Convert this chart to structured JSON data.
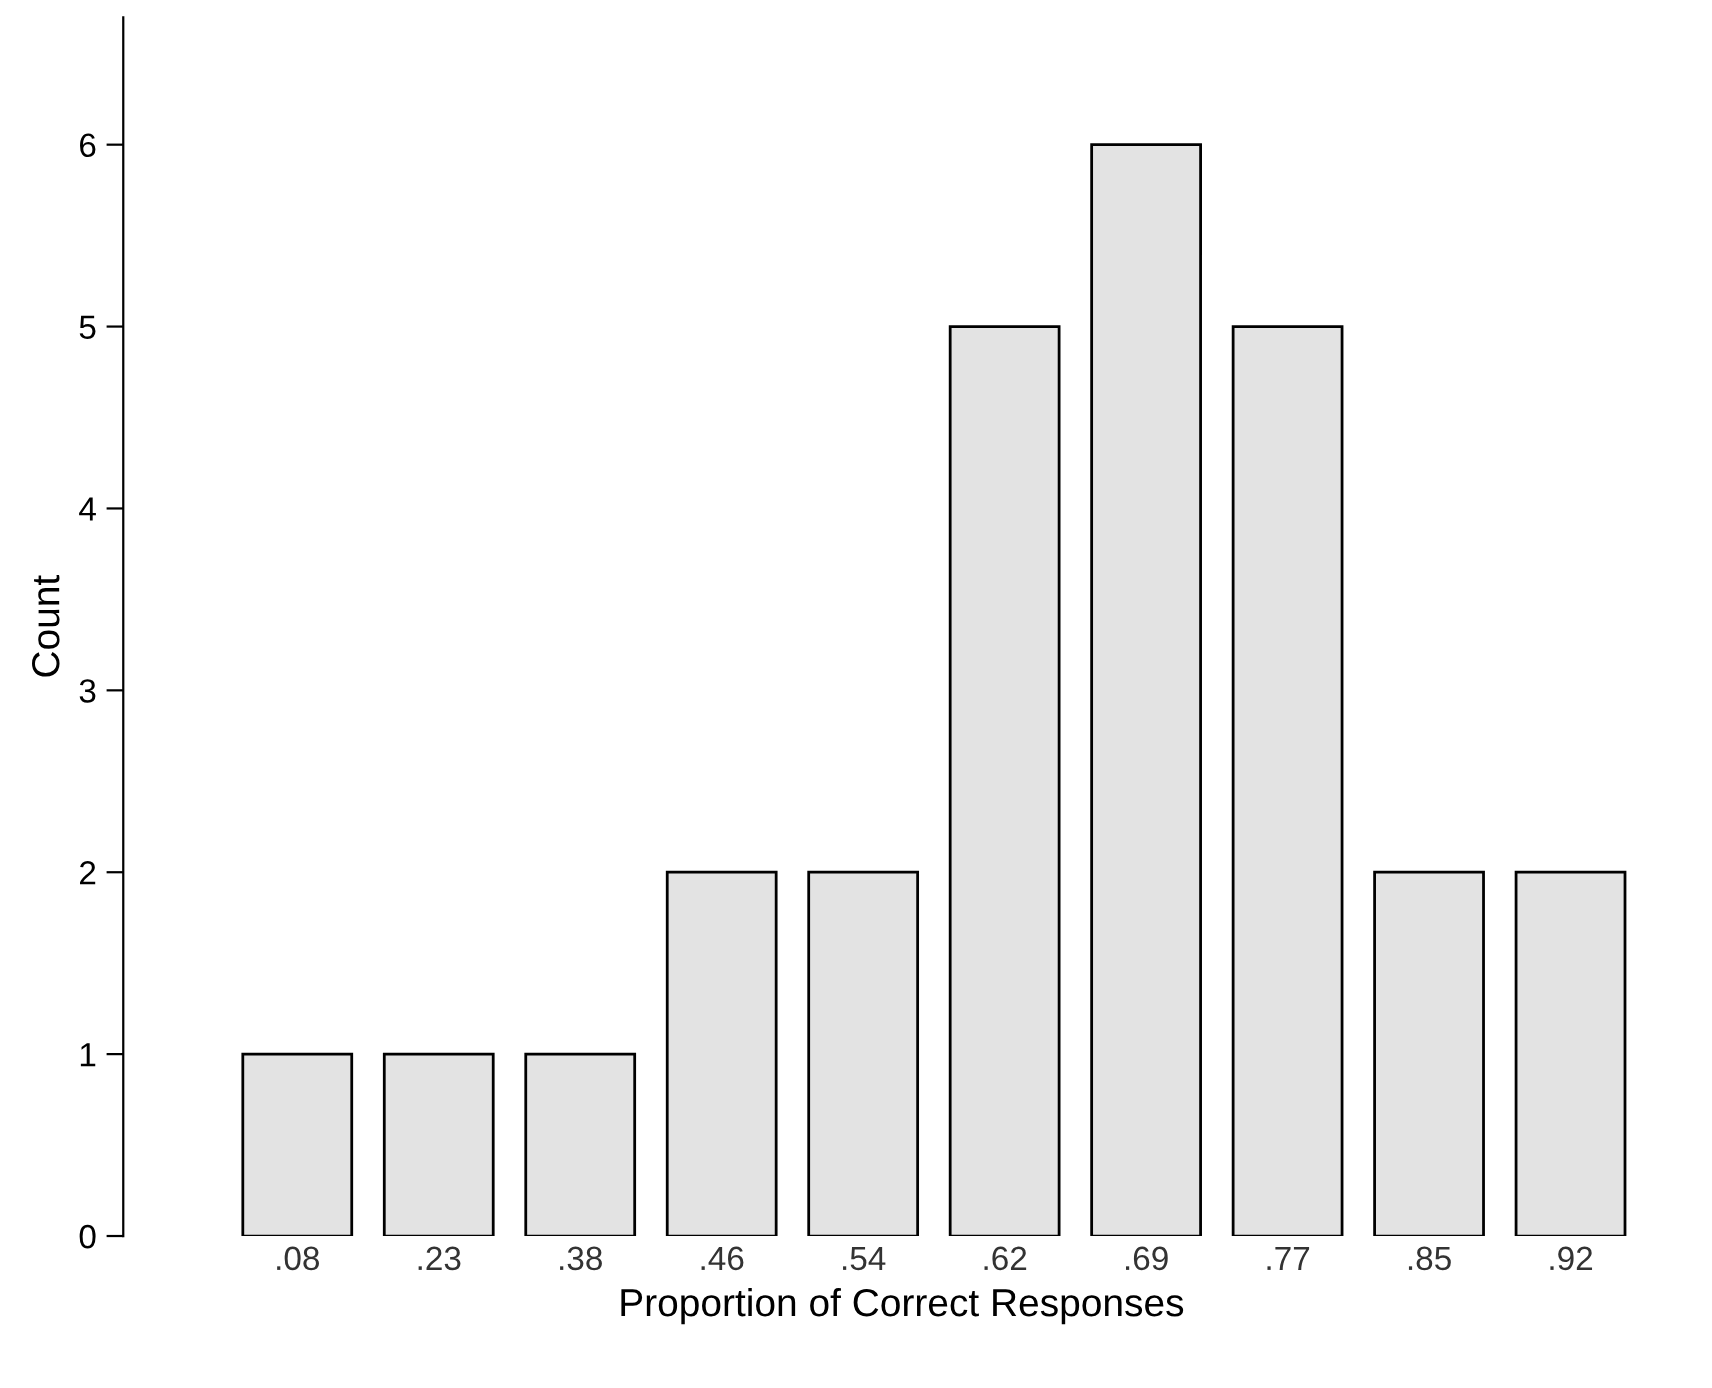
{
  "chart_data": {
    "type": "bar",
    "xlabel": "Proportion of Correct Responses",
    "ylabel": "Count",
    "categories": [
      ".08",
      ".23",
      ".38",
      ".46",
      ".54",
      ".62",
      ".69",
      ".77",
      ".85",
      ".92"
    ],
    "values": [
      1,
      1,
      1,
      2,
      2,
      5,
      6,
      5,
      2,
      2
    ],
    "color": "#e3e3e3",
    "ylim": [
      0,
      6.7
    ],
    "yticks": [
      0,
      1,
      2,
      3,
      4,
      5,
      6
    ],
    "grid": false
  }
}
